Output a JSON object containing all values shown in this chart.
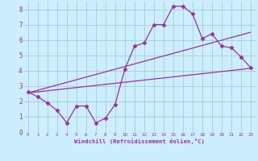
{
  "background_color": "#cceeff",
  "grid_color": "#aacccc",
  "line_color": "#993399",
  "xlim": [
    -0.5,
    23.5
  ],
  "ylim": [
    0,
    8.5
  ],
  "xtick_vals": [
    0,
    1,
    2,
    3,
    4,
    5,
    6,
    7,
    8,
    9,
    10,
    11,
    12,
    13,
    14,
    15,
    16,
    17,
    18,
    19,
    20,
    21,
    22,
    23
  ],
  "ytick_vals": [
    0,
    1,
    2,
    3,
    4,
    5,
    6,
    7,
    8
  ],
  "xlabel": "Windchill (Refroidissement éolien,°C)",
  "series1_x": [
    0,
    1,
    2,
    3,
    4,
    5,
    6,
    7,
    8,
    9,
    10,
    11,
    12,
    13,
    14,
    15,
    16,
    17,
    18,
    19,
    20,
    21,
    22,
    23
  ],
  "series1_y": [
    2.6,
    2.3,
    1.9,
    1.4,
    0.6,
    1.7,
    1.7,
    0.6,
    0.9,
    1.8,
    4.1,
    5.6,
    5.8,
    7.0,
    7.0,
    8.2,
    8.2,
    7.7,
    6.1,
    6.4,
    5.6,
    5.5,
    4.9,
    4.2
  ],
  "series2_x": [
    0,
    23
  ],
  "series2_y": [
    2.55,
    6.5
  ],
  "series3_x": [
    0,
    23
  ],
  "series3_y": [
    2.55,
    4.15
  ],
  "marker": "D",
  "markersize": 2.5,
  "linewidth": 0.9
}
